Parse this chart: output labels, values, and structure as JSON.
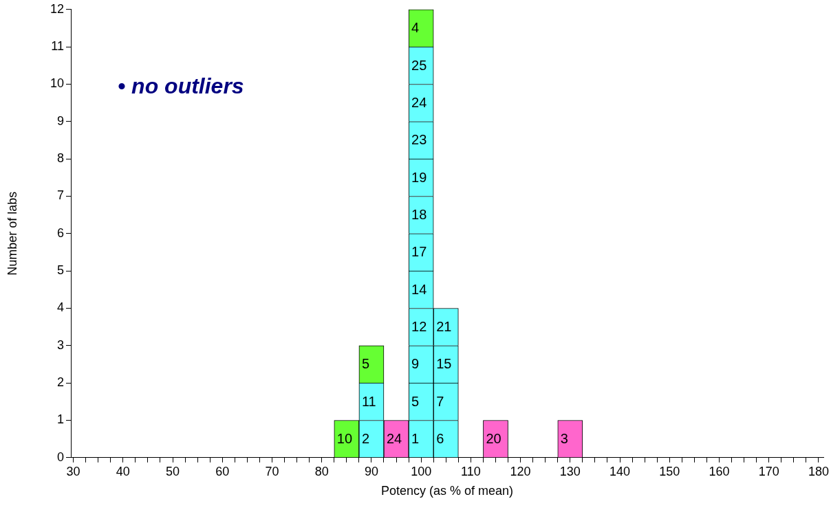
{
  "chart_data": {
    "type": "bar",
    "stacked": true,
    "xlabel": "Potency (as % of mean)",
    "ylabel": "Number of labs",
    "annotations": [
      "• no outliers",
      {
        "text": "10",
        "x": 85,
        "y": 1
      },
      {
        "text": "2",
        "x": 90,
        "y": 1
      },
      {
        "text": "24",
        "x": 95,
        "y": 1
      },
      {
        "text": "1",
        "x": 100,
        "y": 1
      },
      {
        "text": "6",
        "x": 105,
        "y": 1
      },
      {
        "text": "20",
        "x": 115,
        "y": 1
      },
      {
        "text": "3",
        "x": 130,
        "y": 1
      },
      {
        "text": "11",
        "x": 90,
        "y": 2
      },
      {
        "text": "5",
        "x": 100,
        "y": 2
      },
      {
        "text": "7",
        "x": 105,
        "y": 2
      },
      {
        "text": "5",
        "x": 90,
        "y": 3
      },
      {
        "text": "9",
        "x": 100,
        "y": 3
      },
      {
        "text": "15",
        "x": 105,
        "y": 3
      },
      {
        "text": "12",
        "x": 100,
        "y": 4
      },
      {
        "text": "21",
        "x": 105,
        "y": 4
      },
      {
        "text": "14",
        "x": 100,
        "y": 5
      },
      {
        "text": "17",
        "x": 100,
        "y": 6
      },
      {
        "text": "18",
        "x": 100,
        "y": 7
      },
      {
        "text": "19",
        "x": 100,
        "y": 8
      },
      {
        "text": "23",
        "x": 100,
        "y": 9
      },
      {
        "text": "24",
        "x": 100,
        "y": 10
      },
      {
        "text": "25",
        "x": 100,
        "y": 11
      },
      {
        "text": "4",
        "x": 100,
        "y": 12
      }
    ],
    "x": [
      85,
      90,
      95,
      100,
      105,
      115,
      130
    ],
    "xlim": [
      29.5,
      181
    ],
    "xticks": [
      30,
      {
        "value": 32.5,
        "label": null
      },
      {
        "value": 35,
        "label": null
      },
      {
        "value": 37.5,
        "label": null
      },
      40,
      {
        "value": 42.5,
        "label": null
      },
      {
        "value": 45,
        "label": null
      },
      {
        "value": 47.5,
        "label": null
      },
      50,
      {
        "value": 52.5,
        "label": null
      },
      {
        "value": 55,
        "label": null
      },
      {
        "value": 57.5,
        "label": null
      },
      60,
      {
        "value": 62.5,
        "label": null
      },
      {
        "value": 65,
        "label": null
      },
      {
        "value": 67.5,
        "label": null
      },
      70,
      {
        "value": 72.5,
        "label": null
      },
      {
        "value": 75,
        "label": null
      },
      {
        "value": 77.5,
        "label": null
      },
      80,
      {
        "value": 82.5,
        "label": null
      },
      {
        "value": 85,
        "label": null
      },
      {
        "value": 87.5,
        "label": null
      },
      90,
      {
        "value": 92.5,
        "label": null
      },
      {
        "value": 95,
        "label": null
      },
      {
        "value": 97.5,
        "label": null
      },
      100,
      {
        "value": 102.5,
        "label": null
      },
      {
        "value": 105,
        "label": null
      },
      {
        "value": 107.5,
        "label": null
      },
      110,
      {
        "value": 112.5,
        "label": null
      },
      {
        "value": 115,
        "label": null
      },
      {
        "value": 117.5,
        "label": null
      },
      120,
      {
        "value": 122.5,
        "label": null
      },
      {
        "value": 125,
        "label": null
      },
      {
        "value": 127.5,
        "label": null
      },
      130,
      {
        "value": 132.5,
        "label": null
      },
      {
        "value": 135,
        "label": null
      },
      {
        "value": 137.5,
        "label": null
      },
      140,
      {
        "value": 142.5,
        "label": null
      },
      {
        "value": 145,
        "label": null
      },
      {
        "value": 147.5,
        "label": null
      },
      150,
      {
        "value": 152.5,
        "label": null
      },
      {
        "value": 155,
        "label": null
      },
      {
        "value": 157.5,
        "label": null
      },
      160,
      {
        "value": 162.5,
        "label": null
      },
      {
        "value": 165,
        "label": null
      },
      {
        "value": 167.5,
        "label": null
      },
      170,
      {
        "value": 172.5,
        "label": null
      },
      {
        "value": 175,
        "label": null
      },
      {
        "value": 177.5,
        "label": null
      },
      180
    ],
    "ylim": [
      0,
      12
    ],
    "yticks": [
      0,
      1,
      2,
      3,
      4,
      5,
      6,
      7,
      8,
      9,
      10,
      11,
      12
    ],
    "series": [
      {
        "values": [
          1,
          1,
          1,
          1,
          1,
          1,
          1
        ],
        "colors": [
          "#66ff33",
          "#66ffff",
          "#ff66cc",
          "#66ffff",
          "#66ffff",
          "#ff66cc",
          "#ff66cc"
        ]
      },
      {
        "values": [
          null,
          1,
          null,
          1,
          1,
          null,
          null
        ],
        "colors": [
          null,
          "#66ffff",
          null,
          "#66ffff",
          "#66ffff",
          null,
          null
        ]
      },
      {
        "values": [
          null,
          1,
          null,
          1,
          1,
          null,
          null
        ],
        "colors": [
          null,
          "#66ff33",
          null,
          "#66ffff",
          "#66ffff",
          null,
          null
        ]
      },
      {
        "values": [
          null,
          null,
          null,
          1,
          1,
          null,
          null
        ],
        "colors": [
          null,
          null,
          null,
          "#66ffff",
          "#66ffff",
          null,
          null
        ]
      },
      {
        "values": [
          null,
          null,
          null,
          1,
          null,
          null,
          null
        ],
        "colors": [
          null,
          null,
          null,
          "#66ffff",
          null,
          null,
          null
        ]
      },
      {
        "values": [
          null,
          null,
          null,
          1,
          null,
          null,
          null
        ],
        "colors": [
          null,
          null,
          null,
          "#66ffff",
          null,
          null,
          null
        ]
      },
      {
        "values": [
          null,
          null,
          null,
          1,
          null,
          null,
          null
        ],
        "colors": [
          null,
          null,
          null,
          "#66ffff",
          null,
          null,
          null
        ]
      },
      {
        "values": [
          null,
          null,
          null,
          1,
          null,
          null,
          null
        ],
        "colors": [
          null,
          null,
          null,
          "#66ffff",
          null,
          null,
          null
        ]
      },
      {
        "values": [
          null,
          null,
          null,
          1,
          null,
          null,
          null
        ],
        "colors": [
          null,
          null,
          null,
          "#66ffff",
          null,
          null,
          null
        ]
      },
      {
        "values": [
          null,
          null,
          null,
          1,
          null,
          null,
          null
        ],
        "colors": [
          null,
          null,
          null,
          "#66ffff",
          null,
          null,
          null
        ]
      },
      {
        "values": [
          null,
          null,
          null,
          1,
          null,
          null,
          null
        ],
        "colors": [
          null,
          null,
          null,
          "#66ffff",
          null,
          null,
          null
        ]
      },
      {
        "values": [
          null,
          null,
          null,
          1,
          null,
          null,
          null
        ],
        "colors": [
          null,
          null,
          null,
          "#66ff33",
          null,
          null,
          null
        ]
      }
    ]
  }
}
